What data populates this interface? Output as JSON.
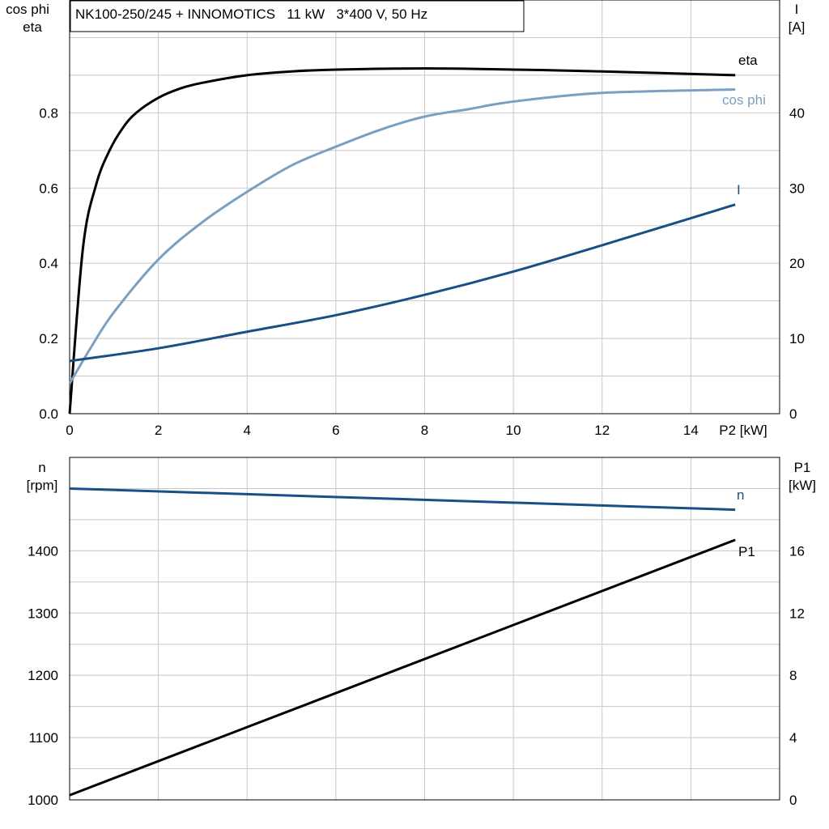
{
  "title": "NK100-250/245 + INNOMOTICS   11 kW   3*400 V, 50 Hz",
  "colors": {
    "eta": "#000000",
    "cos_phi": "#7a9fc0",
    "I": "#1a4f85",
    "n": "#1a4f85",
    "P1": "#000000"
  },
  "chart_data": [
    {
      "type": "line",
      "xlabel": "P2 [kW]",
      "ylabel_left": [
        "cos phi",
        "eta"
      ],
      "ylabel_right": [
        "I",
        "[A]"
      ],
      "xlim": [
        0,
        16
      ],
      "ylim_left": [
        0,
        1.1
      ],
      "ylim_right": [
        0,
        55
      ],
      "grid": true,
      "x_ticks": [
        "0",
        "2",
        "4",
        "6",
        "8",
        "10",
        "12",
        "14"
      ],
      "y_left_ticks": [
        "0.0",
        "0.2",
        "0.4",
        "0.6",
        "0.8"
      ],
      "y_right_ticks": [
        "0",
        "10",
        "20",
        "30",
        "40"
      ],
      "series": [
        {
          "name": "eta",
          "axis": "left",
          "color": "#000000",
          "x": [
            0,
            0.3,
            0.6,
            0.9,
            1.2,
            1.5,
            2,
            2.5,
            3,
            4,
            5,
            6,
            8,
            10,
            12,
            15
          ],
          "y": [
            0,
            0.44,
            0.61,
            0.7,
            0.76,
            0.8,
            0.84,
            0.865,
            0.88,
            0.9,
            0.91,
            0.915,
            0.918,
            0.915,
            0.91,
            0.9
          ]
        },
        {
          "name": "cos phi",
          "axis": "left",
          "color": "#7a9fc0",
          "x": [
            0,
            0.5,
            1,
            2,
            3,
            4,
            5,
            6,
            7,
            8,
            9,
            10,
            12,
            15
          ],
          "y": [
            0.08,
            0.18,
            0.27,
            0.41,
            0.51,
            0.59,
            0.66,
            0.71,
            0.755,
            0.79,
            0.81,
            0.83,
            0.853,
            0.862
          ]
        },
        {
          "name": "I",
          "axis": "right",
          "color": "#1a4f85",
          "x": [
            0,
            2,
            4,
            6,
            8,
            10,
            12,
            15
          ],
          "y": [
            7.0,
            8.7,
            10.9,
            13.1,
            15.8,
            18.9,
            22.4,
            27.8
          ]
        }
      ]
    },
    {
      "type": "line",
      "ylabel_left": [
        "n",
        "[rpm]"
      ],
      "ylabel_right": [
        "P1",
        "[kW]"
      ],
      "xlim": [
        0,
        16
      ],
      "ylim_left": [
        1000,
        1550
      ],
      "ylim_right": [
        0,
        22
      ],
      "grid": true,
      "y_left_ticks": [
        "1000",
        "1100",
        "1200",
        "1300",
        "1400"
      ],
      "y_right_ticks": [
        "0",
        "4",
        "8",
        "12",
        "16"
      ],
      "series": [
        {
          "name": "n",
          "axis": "left",
          "color": "#1a4f85",
          "x": [
            0,
            15
          ],
          "y": [
            1500,
            1466
          ]
        },
        {
          "name": "P1",
          "axis": "right",
          "color": "#000000",
          "x": [
            0,
            15
          ],
          "y": [
            0.3,
            16.7
          ]
        }
      ]
    }
  ]
}
